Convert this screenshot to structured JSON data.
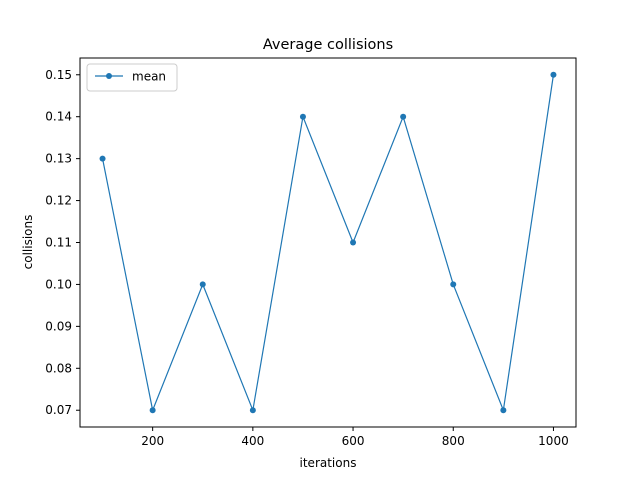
{
  "chart_data": {
    "type": "line",
    "title": "Average collisions",
    "xlabel": "iterations",
    "ylabel": "collisions",
    "x": [
      100,
      200,
      300,
      400,
      500,
      600,
      700,
      800,
      900,
      1000
    ],
    "series": [
      {
        "name": "mean",
        "color": "#1f77b4",
        "marker": "circle",
        "values": [
          0.13,
          0.07,
          0.1,
          0.07,
          0.14,
          0.11,
          0.14,
          0.1,
          0.07,
          0.15
        ]
      }
    ],
    "xticks": [
      200,
      400,
      600,
      800,
      1000
    ],
    "yticks": [
      0.07,
      0.08,
      0.09,
      0.1,
      0.11,
      0.12,
      0.13,
      0.14,
      0.15
    ],
    "ytick_labels": [
      "0.07",
      "0.08",
      "0.09",
      "0.10",
      "0.11",
      "0.12",
      "0.13",
      "0.14",
      "0.15"
    ],
    "xlim": [
      55,
      1045
    ],
    "ylim": [
      0.066,
      0.154
    ],
    "grid": false,
    "legend_position": "top-left"
  }
}
